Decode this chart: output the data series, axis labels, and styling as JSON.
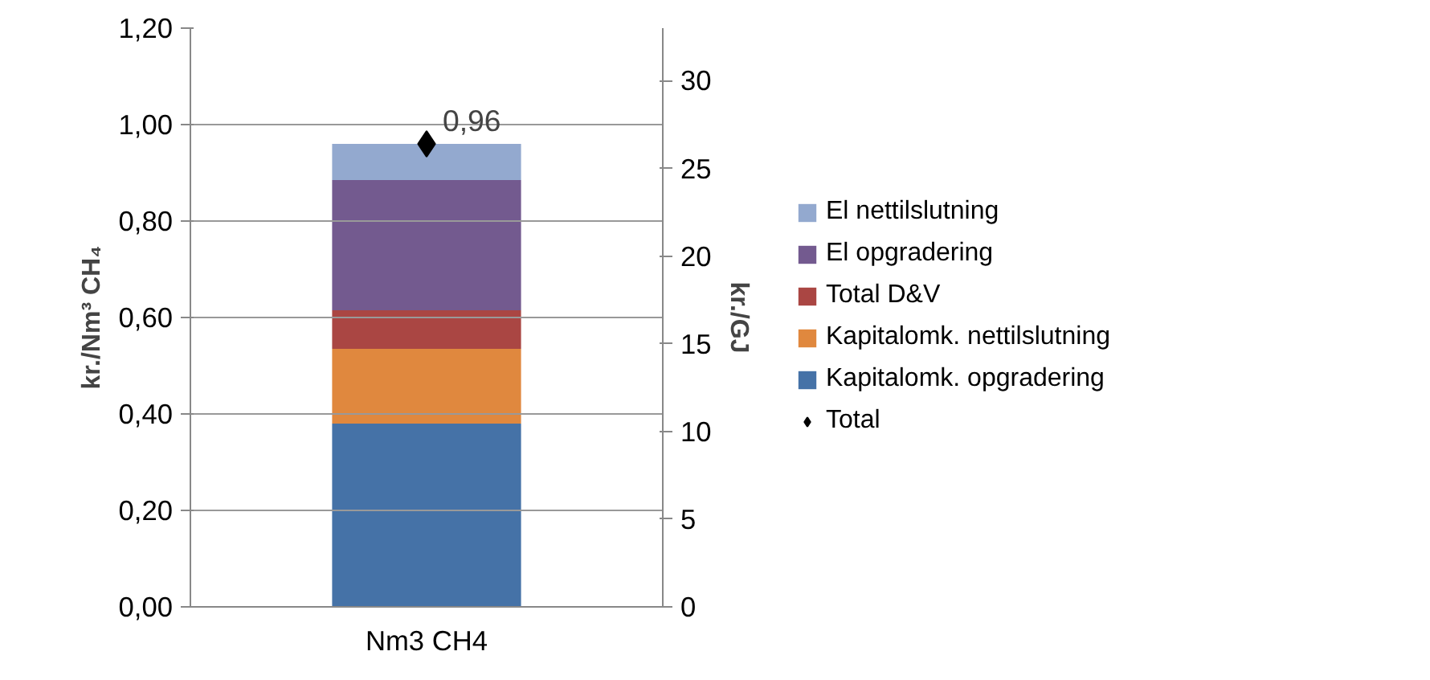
{
  "chart_data": {
    "type": "bar",
    "stacked": true,
    "categories": [
      "Nm3 CH4"
    ],
    "ylabel": "kr./Nm³ CH₄",
    "y2label": "kr./GJ",
    "ylim": [
      0,
      1.2
    ],
    "yticks": [
      {
        "value": 0,
        "label": "0,00"
      },
      {
        "value": 0.2,
        "label": "0,20"
      },
      {
        "value": 0.4,
        "label": "0,40"
      },
      {
        "value": 0.6,
        "label": "0,60"
      },
      {
        "value": 0.8,
        "label": "0,80"
      },
      {
        "value": 1.0,
        "label": "1,00"
      },
      {
        "value": 1.2,
        "label": "1,20"
      }
    ],
    "y2lim": [
      0,
      33
    ],
    "y2ticks": [
      0,
      5,
      10,
      15,
      20,
      25,
      30
    ],
    "grid": "y",
    "legend": "right",
    "series": [
      {
        "name": "Kapitalomk. opgradering",
        "color": "#4572a7",
        "values": [
          0.38
        ]
      },
      {
        "name": "Kapitalomk. nettilslutning",
        "color": "#e0883e",
        "values": [
          0.155
        ]
      },
      {
        "name": "Total D&V",
        "color": "#aa4643",
        "values": [
          0.08
        ]
      },
      {
        "name": "El opgradering",
        "color": "#735a8f",
        "values": [
          0.27
        ]
      },
      {
        "name": "El nettilslutning",
        "color": "#93a9cf",
        "values": [
          0.075
        ]
      },
      {
        "name": "Total",
        "type": "scatter",
        "marker": "diamond",
        "color": "#000000",
        "values": [
          0.96
        ],
        "value_labels": [
          "0,96"
        ]
      }
    ]
  }
}
